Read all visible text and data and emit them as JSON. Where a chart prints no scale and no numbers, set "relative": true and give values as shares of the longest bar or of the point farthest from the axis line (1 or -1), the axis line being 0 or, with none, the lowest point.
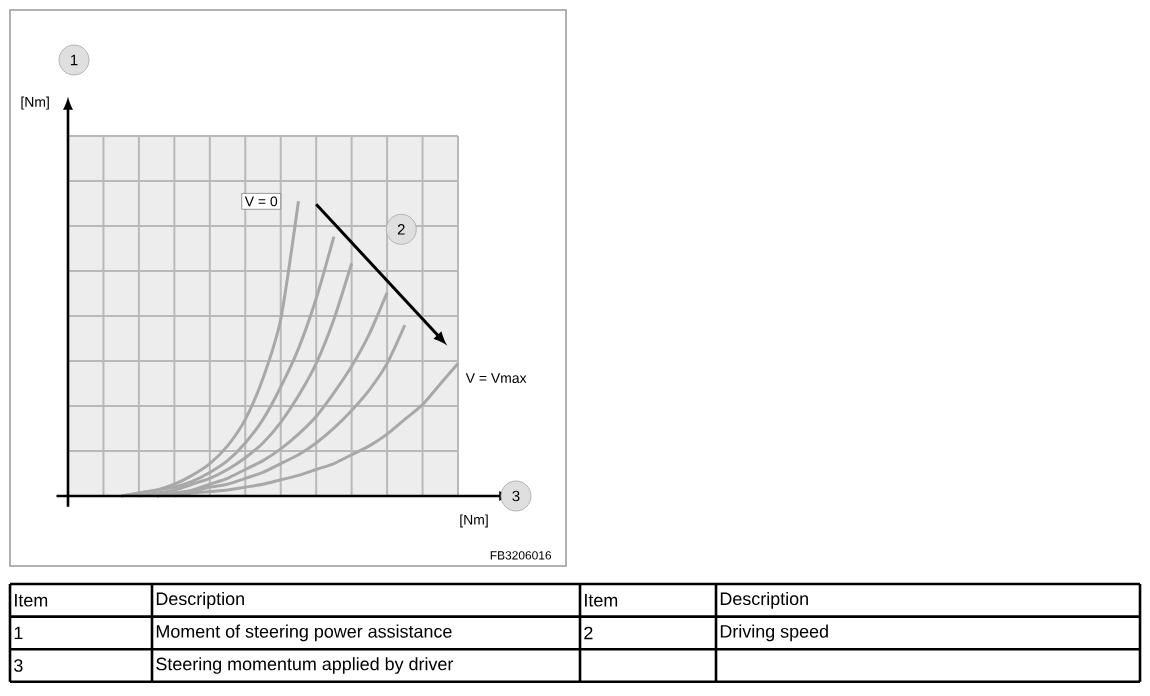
{
  "chart_data": {
    "type": "line",
    "relative": true,
    "grid": true,
    "xlabel": "[Nm]",
    "categories": [
      null,
      null,
      null,
      null,
      null,
      null,
      null,
      null,
      null,
      null,
      null,
      null,
      null,
      null,
      null,
      null,
      null,
      null,
      null,
      null,
      null,
      null,
      null
    ],
    "series": [
      {
        "color": "#a8a8a8",
        "values": [
          null,
          null,
          null,
          0,
          0.01,
          0.02,
          0.04,
          0.07,
          0.11,
          0.17,
          0.26,
          0.4,
          0.6,
          1,
          null,
          null,
          null,
          null,
          null,
          null,
          null,
          null,
          null
        ]
      },
      {
        "color": "#a8a8a8",
        "values": [
          null,
          null,
          null,
          0,
          0.01,
          0.02,
          0.03,
          0.05,
          0.08,
          0.12,
          0.18,
          0.26,
          0.37,
          0.5,
          0.67,
          0.88,
          null,
          null,
          null,
          null,
          null,
          null,
          null
        ]
      },
      {
        "color": "#a8a8a8",
        "values": [
          null,
          null,
          null,
          null,
          0,
          0.01,
          0.02,
          0.04,
          0.06,
          0.09,
          0.13,
          0.18,
          0.25,
          0.34,
          0.45,
          0.6,
          0.79,
          null,
          null,
          null,
          null,
          null,
          null
        ]
      },
      {
        "color": "#a8a8a8",
        "values": [
          null,
          null,
          null,
          null,
          null,
          0,
          0.01,
          0.02,
          0.04,
          0.06,
          0.09,
          0.12,
          0.16,
          0.21,
          0.27,
          0.35,
          0.44,
          0.55,
          0.69,
          null,
          null,
          null,
          null
        ]
      },
      {
        "color": "#a8a8a8",
        "values": [
          null,
          null,
          null,
          null,
          null,
          0,
          0.01,
          0.015,
          0.03,
          0.04,
          0.06,
          0.08,
          0.11,
          0.14,
          0.18,
          0.23,
          0.29,
          0.36,
          0.45,
          0.58,
          null,
          null,
          null
        ]
      },
      {
        "color": "#a8a8a8",
        "values": [
          null,
          null,
          null,
          null,
          null,
          null,
          0,
          0.01,
          0.015,
          0.02,
          0.03,
          0.04,
          0.055,
          0.07,
          0.09,
          0.11,
          0.14,
          0.17,
          0.21,
          0.26,
          0.31,
          0.38,
          0.45
        ]
      }
    ],
    "annotations": [
      "[Nm]",
      "V = 0",
      "V = Vmax",
      "1",
      "2",
      "3",
      "FB3206016",
      "Item",
      "Description",
      "Item",
      "Description",
      "1",
      "Moment of steering power assistance",
      "2",
      "Driving speed",
      "3",
      "Steering momentum applied by driver"
    ]
  }
}
